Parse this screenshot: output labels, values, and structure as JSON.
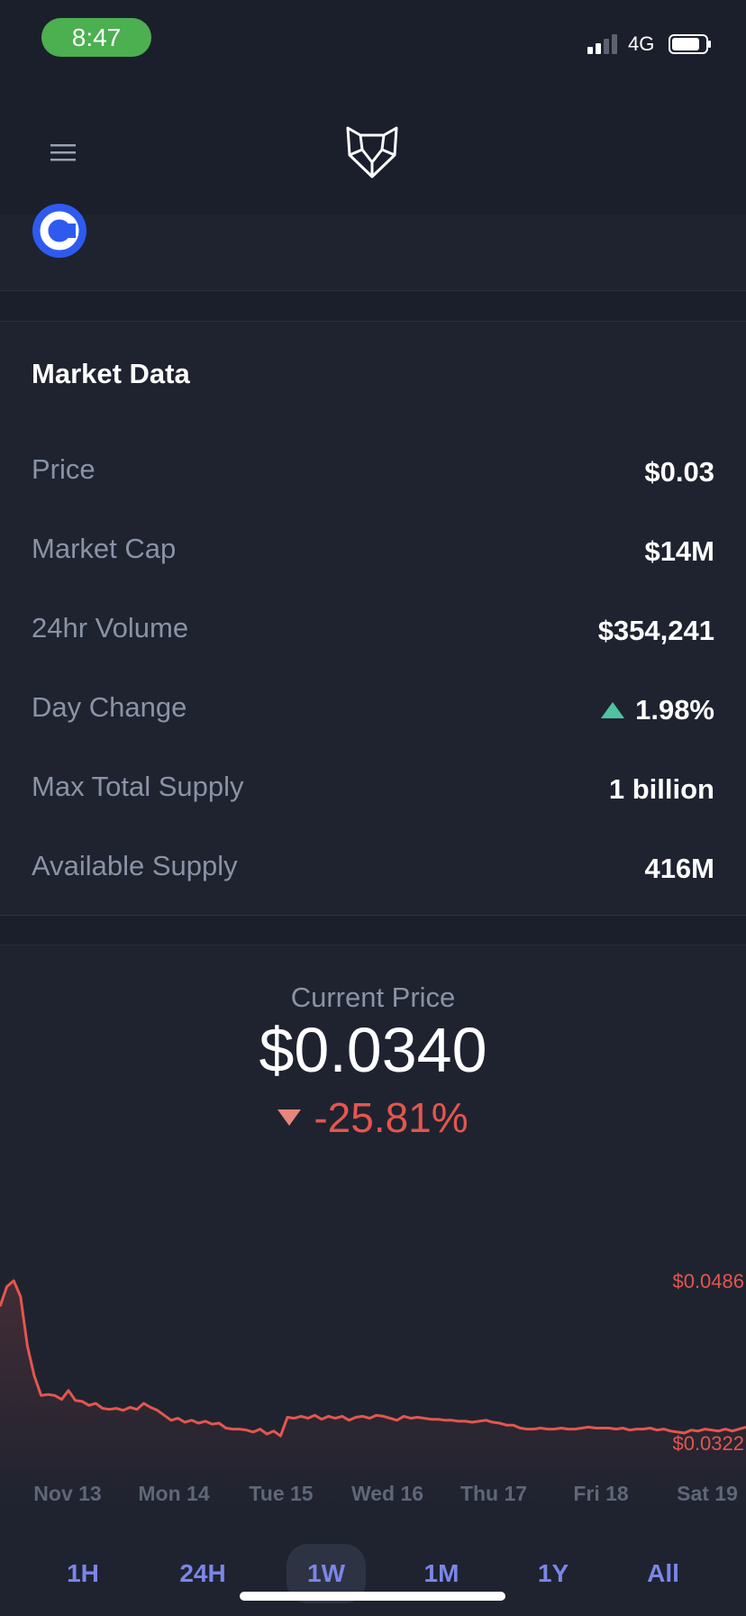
{
  "status_bar": {
    "time": "8:47",
    "network": "4G"
  },
  "market_data": {
    "title": "Market Data",
    "rows": [
      {
        "label": "Price",
        "value": "$0.03"
      },
      {
        "label": "Market Cap",
        "value": "$14M"
      },
      {
        "label": "24hr Volume",
        "value": "$354,241"
      },
      {
        "label": "Day Change",
        "value": "1.98%"
      },
      {
        "label": "Max Total Supply",
        "value": "1 billion"
      },
      {
        "label": "Available Supply",
        "value": "416M"
      }
    ]
  },
  "price_panel": {
    "label": "Current Price",
    "value": "$0.0340",
    "change": "-25.81%"
  },
  "colors": {
    "line": "#e4564d",
    "accent": "#7b86e8",
    "positive": "#4fc3a1"
  },
  "chart_data": {
    "type": "line",
    "y_max_label": "$0.0486",
    "y_min_label": "$0.0322",
    "ylim": [
      0.0322,
      0.0486
    ],
    "tick_labels": [
      "Nov 13",
      "Mon 14",
      "Tue 15",
      "Wed 16",
      "Thu 17",
      "Fri 18",
      "Sat 19"
    ],
    "values": [
      0.046,
      0.048,
      0.0486,
      0.047,
      0.042,
      0.039,
      0.037,
      0.0371,
      0.037,
      0.0366,
      0.0375,
      0.0365,
      0.0364,
      0.036,
      0.0362,
      0.0357,
      0.0356,
      0.0357,
      0.0355,
      0.0358,
      0.0356,
      0.0362,
      0.0358,
      0.0355,
      0.035,
      0.0345,
      0.0347,
      0.0343,
      0.0345,
      0.0342,
      0.0344,
      0.0341,
      0.0342,
      0.0337,
      0.0336,
      0.0336,
      0.0335,
      0.0333,
      0.0336,
      0.0331,
      0.0334,
      0.0329,
      0.0348,
      0.0347,
      0.0349,
      0.0347,
      0.035,
      0.0346,
      0.0349,
      0.0347,
      0.0349,
      0.0345,
      0.0348,
      0.0349,
      0.0347,
      0.035,
      0.0349,
      0.0347,
      0.0345,
      0.0349,
      0.0347,
      0.0348,
      0.0347,
      0.0346,
      0.0346,
      0.0345,
      0.0345,
      0.0344,
      0.0344,
      0.0343,
      0.0344,
      0.0345,
      0.0343,
      0.0342,
      0.034,
      0.034,
      0.0337,
      0.0336,
      0.0336,
      0.0337,
      0.0336,
      0.0336,
      0.0337,
      0.0336,
      0.0336,
      0.0337,
      0.0338,
      0.0337,
      0.0337,
      0.0337,
      0.0336,
      0.0337,
      0.0335,
      0.0336,
      0.0336,
      0.0337,
      0.0335,
      0.0336,
      0.0334,
      0.0333,
      0.0332,
      0.0335,
      0.0334,
      0.0336,
      0.0335,
      0.0334,
      0.0336,
      0.0334,
      0.0336,
      0.0338
    ]
  },
  "range_tabs": {
    "items": [
      "1H",
      "24H",
      "1W",
      "1M",
      "1Y",
      "All"
    ],
    "active": "1W"
  }
}
